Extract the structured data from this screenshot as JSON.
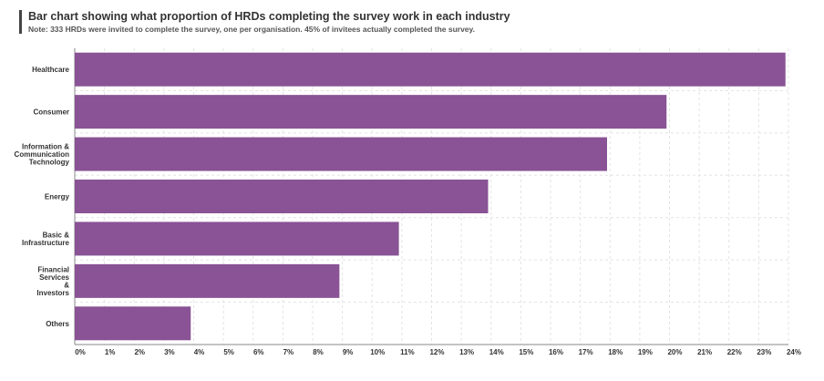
{
  "header": {
    "title": "Bar chart showing what proportion of HRDs completing the survey work in each industry",
    "subtitle": "Note: 333 HRDs were invited to complete the survey, one per organisation. 45% of invitees actually completed the survey."
  },
  "chart_data": {
    "type": "bar",
    "orientation": "horizontal",
    "categories": [
      [
        "Healthcare"
      ],
      [
        "Consumer"
      ],
      [
        "Information &",
        "Communication",
        "Technology"
      ],
      [
        "Energy"
      ],
      [
        "Basic &",
        "Infrastructure"
      ],
      [
        "Financial",
        "Services",
        "&",
        "Investors"
      ],
      [
        "Others"
      ]
    ],
    "values": [
      23.9,
      19.9,
      17.9,
      13.9,
      10.9,
      8.9,
      3.9
    ],
    "xlim": [
      0,
      24
    ],
    "xticks": [
      0,
      1,
      2,
      3,
      4,
      5,
      6,
      7,
      8,
      9,
      10,
      11,
      12,
      13,
      14,
      15,
      16,
      17,
      18,
      19,
      20,
      21,
      22,
      23,
      24
    ],
    "tick_suffix": "%",
    "grid": true,
    "bar_color": "#895395",
    "grid_color": "#e3e3e3",
    "axis_color": "#888888"
  }
}
